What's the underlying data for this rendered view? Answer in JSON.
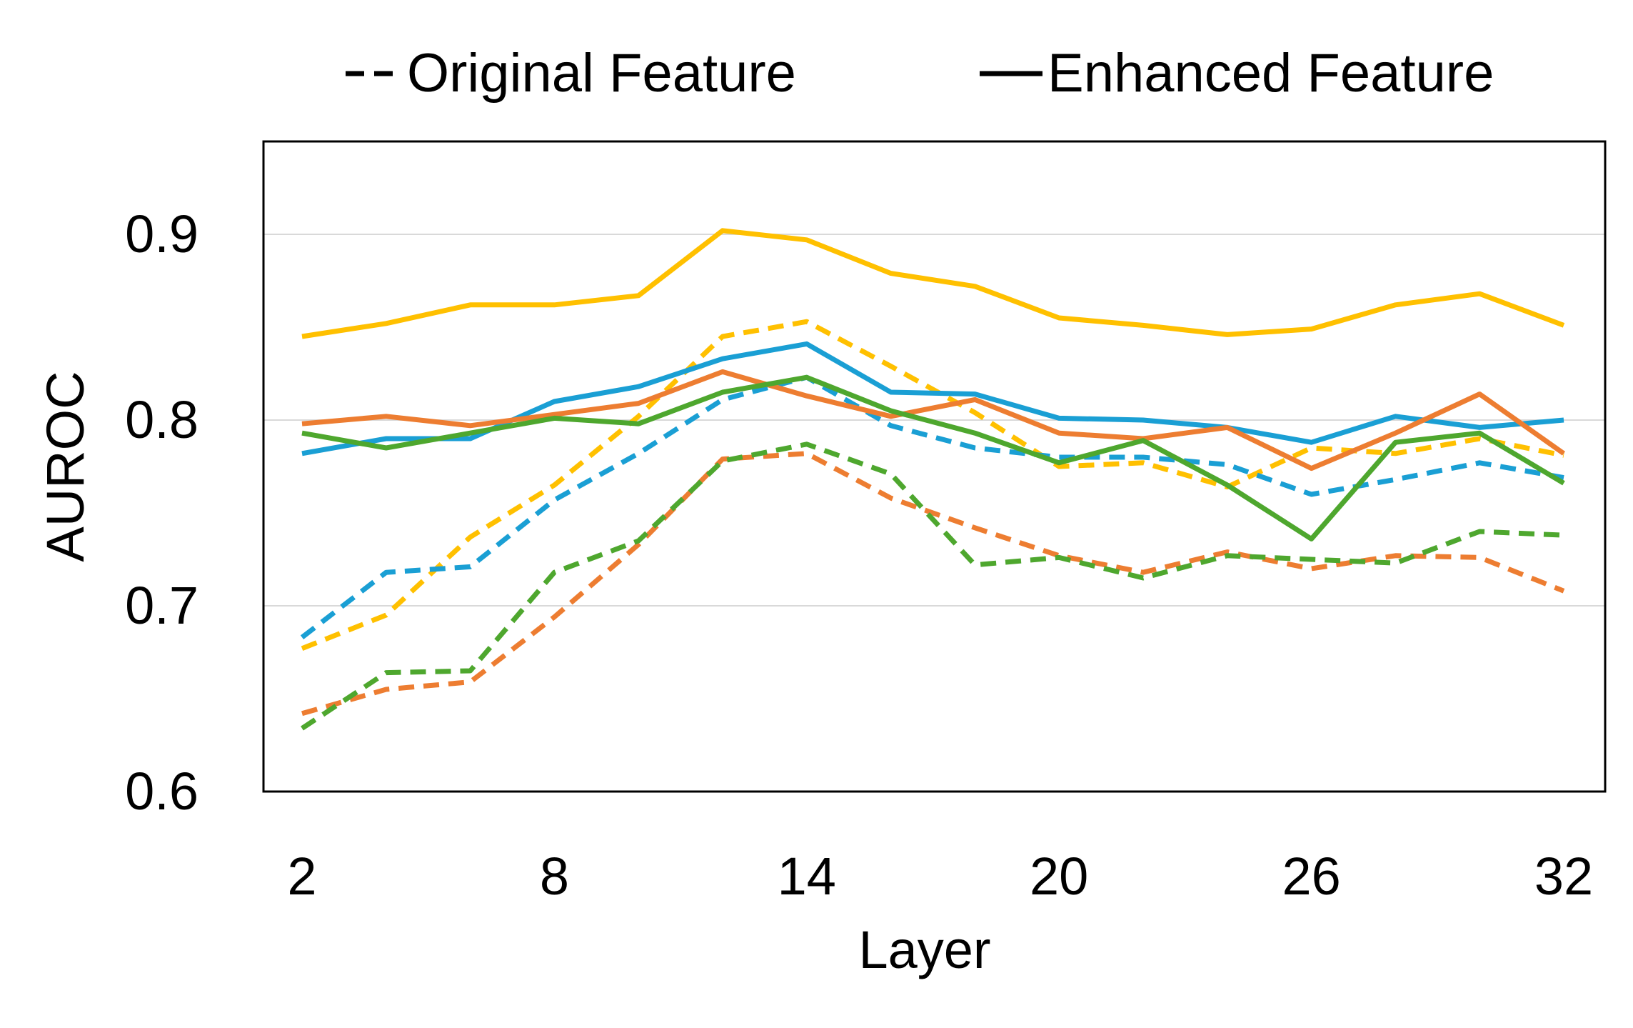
{
  "chart_data": {
    "type": "line",
    "title": "",
    "xlabel": "Layer",
    "ylabel": "AUROC",
    "x": [
      2,
      4,
      6,
      8,
      10,
      12,
      14,
      16,
      18,
      20,
      22,
      24,
      26,
      28,
      30,
      32
    ],
    "xticks": [
      2,
      8,
      14,
      20,
      26,
      32
    ],
    "xtick_labels": [
      "2",
      "8",
      "14",
      "20",
      "26",
      "32"
    ],
    "xlim": [
      2,
      32
    ],
    "ylim": [
      0.6,
      0.95
    ],
    "yticks": [
      0.6,
      0.7,
      0.8,
      0.9
    ],
    "ytick_labels": [
      "0.6",
      "0.7",
      "0.8",
      "0.9"
    ],
    "grid": "horizontal",
    "legend": {
      "position": "top",
      "entries": [
        {
          "label": "Original Feature",
          "style": "dashed"
        },
        {
          "label": "Enhanced Feature",
          "style": "solid"
        }
      ]
    },
    "series": [
      {
        "color": "#FFC000",
        "style": "solid",
        "values": [
          0.845,
          0.852,
          0.862,
          0.862,
          0.867,
          0.902,
          0.897,
          0.879,
          0.872,
          0.855,
          0.851,
          0.846,
          0.849,
          0.862,
          0.868,
          0.851
        ]
      },
      {
        "color": "#1A9FD4",
        "style": "solid",
        "values": [
          0.782,
          0.79,
          0.79,
          0.81,
          0.818,
          0.833,
          0.841,
          0.815,
          0.814,
          0.801,
          0.8,
          0.796,
          0.788,
          0.802,
          0.796,
          0.8
        ]
      },
      {
        "color": "#ED7D31",
        "style": "solid",
        "values": [
          0.798,
          0.802,
          0.797,
          0.803,
          0.809,
          0.826,
          0.813,
          0.802,
          0.811,
          0.793,
          0.79,
          0.796,
          0.774,
          0.793,
          0.814,
          0.782
        ]
      },
      {
        "color": "#4EA72E",
        "style": "solid",
        "values": [
          0.793,
          0.785,
          0.793,
          0.801,
          0.798,
          0.815,
          0.823,
          0.805,
          0.793,
          0.777,
          0.789,
          0.765,
          0.736,
          0.788,
          0.793,
          0.766
        ]
      },
      {
        "color": "#FFC000",
        "style": "dashed",
        "values": [
          0.677,
          0.695,
          0.737,
          0.765,
          0.802,
          0.845,
          0.853,
          0.829,
          0.804,
          0.775,
          0.777,
          0.764,
          0.785,
          0.782,
          0.79,
          0.781
        ]
      },
      {
        "color": "#1A9FD4",
        "style": "dashed",
        "values": [
          0.683,
          0.718,
          0.721,
          0.757,
          0.782,
          0.811,
          0.823,
          0.797,
          0.785,
          0.78,
          0.78,
          0.776,
          0.76,
          0.768,
          0.777,
          0.769
        ]
      },
      {
        "color": "#ED7D31",
        "style": "dashed",
        "values": [
          0.642,
          0.655,
          0.659,
          0.694,
          0.733,
          0.779,
          0.782,
          0.758,
          0.742,
          0.727,
          0.718,
          0.729,
          0.72,
          0.727,
          0.726,
          0.708
        ]
      },
      {
        "color": "#4EA72E",
        "style": "dashed",
        "values": [
          0.634,
          0.664,
          0.665,
          0.718,
          0.735,
          0.778,
          0.787,
          0.771,
          0.722,
          0.726,
          0.715,
          0.727,
          0.725,
          0.723,
          0.74,
          0.738
        ]
      }
    ]
  }
}
